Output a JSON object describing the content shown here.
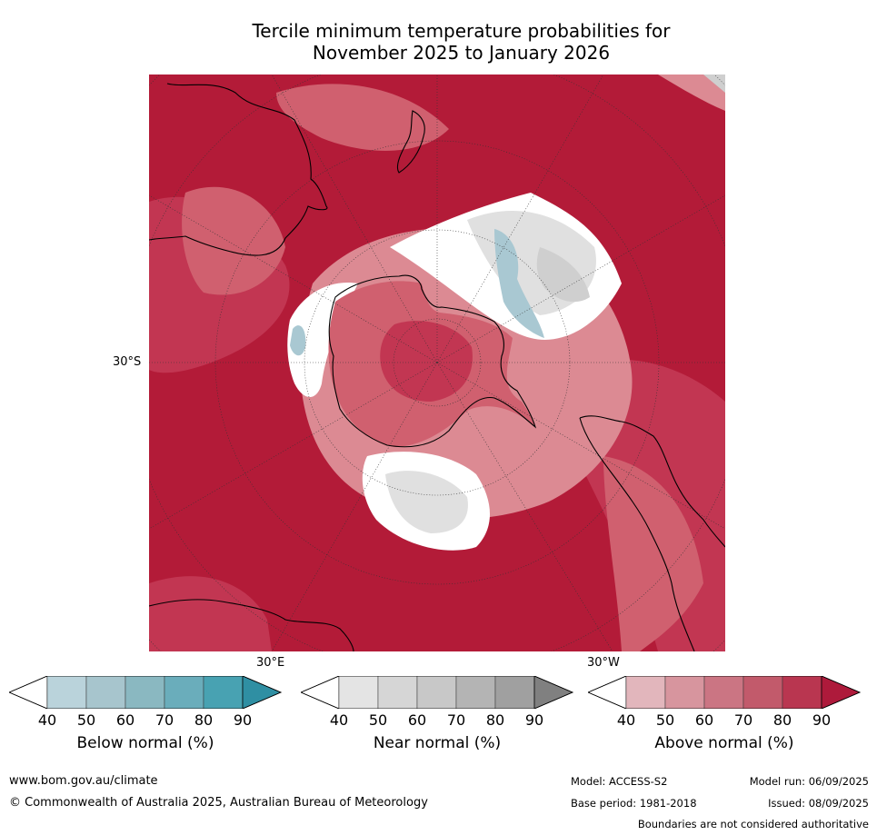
{
  "title": {
    "line1": "Tercile minimum temperature probabilities for",
    "line2": "November 2025 to January 2026"
  },
  "map": {
    "projection": "south polar stereographic",
    "lat_label": "30°S",
    "lon_labels": [
      "30°E",
      "30°W"
    ],
    "colors": {
      "above_90": "#b31b38",
      "above_80": "#c23652",
      "above_70": "#d0606f",
      "above_60": "#dc8a93",
      "below_50": "#a9c8d2",
      "near_50": "#e0e0e0",
      "near_60": "#cfcfcf"
    }
  },
  "colorbars": [
    {
      "label": "Below normal (%)",
      "ticks": [
        "40",
        "50",
        "60",
        "70",
        "80",
        "90"
      ],
      "colors": [
        "#ffffff",
        "#bad3db",
        "#a7c5cd",
        "#8ab8c1",
        "#6aadbb",
        "#48a2b2",
        "#2f8fa3"
      ]
    },
    {
      "label": "Near normal (%)",
      "ticks": [
        "40",
        "50",
        "60",
        "70",
        "80",
        "90"
      ],
      "colors": [
        "#ffffff",
        "#e4e4e4",
        "#d6d6d6",
        "#c8c8c8",
        "#b4b4b4",
        "#a0a0a0",
        "#808080"
      ]
    },
    {
      "label": "Above normal (%)",
      "ticks": [
        "40",
        "50",
        "60",
        "70",
        "80",
        "90"
      ],
      "colors": [
        "#ffffff",
        "#e2b6bc",
        "#d7959e",
        "#cb7583",
        "#c25a6b",
        "#b93650",
        "#ae1a3b"
      ]
    }
  ],
  "footer": {
    "url": "www.bom.gov.au/climate",
    "copyright": "© Commonwealth of Australia 2025, Australian Bureau of Meteorology",
    "model": "Model: ACCESS-S2",
    "base_period": "Base period: 1981-2018",
    "model_run": "Model run: 06/09/2025",
    "issued": "Issued: 08/09/2025",
    "disclaimer": "Boundaries are not considered authoritative"
  }
}
